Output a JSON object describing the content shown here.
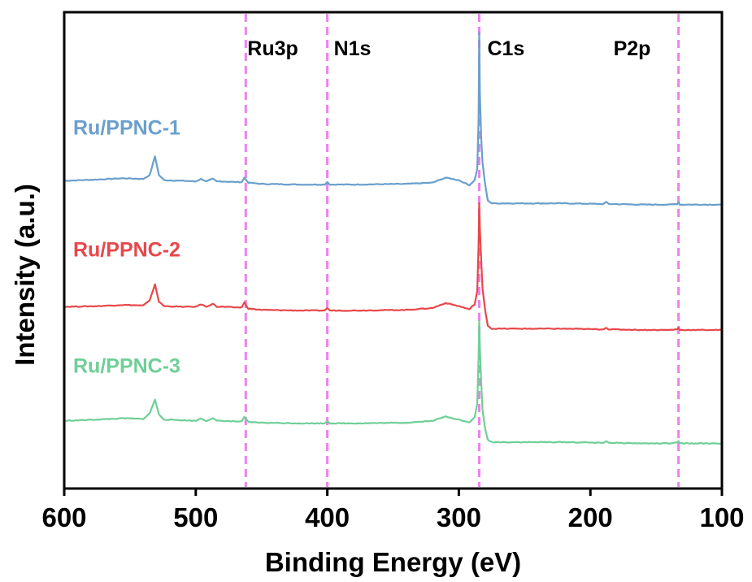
{
  "chart_data": {
    "type": "line",
    "xlabel": "Binding Energy (eV)",
    "ylabel": "Intensity (a.u.)",
    "xlim": [
      600,
      100
    ],
    "x_reversed": true,
    "x_ticks": [
      600,
      500,
      400,
      300,
      200,
      100
    ],
    "y_ticks_shown": false,
    "reference_lines": [
      {
        "label": "Ru3p",
        "x": 462,
        "color": "#ee82ee"
      },
      {
        "label": "N1s",
        "x": 400,
        "color": "#ee82ee"
      },
      {
        "label": "C1s",
        "x": 284.5,
        "color": "#ee82ee"
      },
      {
        "label": "P2p",
        "x": 133,
        "color": "#ee82ee"
      }
    ],
    "series": [
      {
        "name": "Ru/PPNC-1",
        "color": "#6a9fcc",
        "x": [
          600,
          575,
          555,
          540,
          535,
          531,
          528,
          524,
          510,
          500,
          496,
          492,
          487,
          484,
          480,
          470,
          465,
          463,
          460,
          450,
          420,
          402,
          400,
          398,
          380,
          340,
          320,
          310,
          300,
          292,
          288,
          286,
          285,
          284.5,
          284,
          283,
          282,
          280,
          278,
          275,
          270,
          250,
          220,
          190,
          188,
          186,
          160,
          140,
          134,
          133,
          132,
          120,
          100
        ],
        "y": [
          1.81,
          1.83,
          1.85,
          1.84,
          1.9,
          2.2,
          1.9,
          1.82,
          1.81,
          1.8,
          1.84,
          1.8,
          1.84,
          1.8,
          1.8,
          1.79,
          1.79,
          1.86,
          1.78,
          1.76,
          1.75,
          1.75,
          1.79,
          1.75,
          1.75,
          1.76,
          1.78,
          1.86,
          1.82,
          1.74,
          1.82,
          2.0,
          2.8,
          4.18,
          3.2,
          2.5,
          2.1,
          1.75,
          1.5,
          1.45,
          1.45,
          1.45,
          1.45,
          1.44,
          1.47,
          1.44,
          1.43,
          1.43,
          1.44,
          1.47,
          1.43,
          1.43,
          1.43
        ]
      },
      {
        "name": "Ru/PPNC-2",
        "color": "#e8474a",
        "x": [
          600,
          575,
          555,
          540,
          535,
          531,
          528,
          524,
          510,
          500,
          496,
          492,
          487,
          484,
          480,
          470,
          465,
          463,
          460,
          450,
          420,
          402,
          400,
          398,
          380,
          340,
          320,
          310,
          300,
          292,
          288,
          286,
          285,
          284.5,
          284,
          283,
          282,
          280,
          278,
          275,
          270,
          250,
          220,
          190,
          188,
          186,
          160,
          140,
          134,
          133,
          132,
          120,
          100
        ],
        "y": [
          -0.2,
          -0.19,
          -0.17,
          -0.18,
          -0.1,
          0.16,
          -0.12,
          -0.19,
          -0.2,
          -0.2,
          -0.16,
          -0.2,
          -0.15,
          -0.2,
          -0.2,
          -0.21,
          -0.21,
          -0.13,
          -0.23,
          -0.25,
          -0.26,
          -0.26,
          -0.22,
          -0.26,
          -0.26,
          -0.25,
          -0.22,
          -0.14,
          -0.19,
          -0.24,
          -0.16,
          0.05,
          0.8,
          1.45,
          1.05,
          0.55,
          0.1,
          -0.25,
          -0.5,
          -0.55,
          -0.55,
          -0.55,
          -0.55,
          -0.56,
          -0.53,
          -0.56,
          -0.57,
          -0.57,
          -0.56,
          -0.53,
          -0.57,
          -0.57,
          -0.57
        ]
      },
      {
        "name": "Ru/PPNC-3",
        "color": "#6fcf97",
        "x": [
          600,
          575,
          555,
          540,
          535,
          531,
          528,
          524,
          510,
          500,
          496,
          492,
          487,
          484,
          480,
          470,
          465,
          463,
          460,
          450,
          420,
          402,
          400,
          398,
          380,
          340,
          320,
          310,
          300,
          292,
          288,
          286,
          285,
          284.5,
          284,
          283,
          282,
          280,
          278,
          275,
          270,
          250,
          220,
          190,
          188,
          186,
          160,
          140,
          134,
          133,
          132,
          120,
          100
        ],
        "y": [
          -2.02,
          -2.0,
          -1.98,
          -1.99,
          -1.9,
          -1.68,
          -1.92,
          -2.0,
          -2.01,
          -2.02,
          -1.98,
          -2.02,
          -1.98,
          -2.02,
          -2.02,
          -2.03,
          -2.03,
          -1.96,
          -2.04,
          -2.05,
          -2.06,
          -2.06,
          -2.02,
          -2.06,
          -2.06,
          -2.05,
          -2.02,
          -1.95,
          -2.0,
          -2.05,
          -1.96,
          -1.75,
          -1.0,
          -0.42,
          -0.85,
          -1.4,
          -1.85,
          -2.15,
          -2.32,
          -2.36,
          -2.36,
          -2.36,
          -2.36,
          -2.37,
          -2.34,
          -2.37,
          -2.38,
          -2.38,
          -2.37,
          -2.34,
          -2.38,
          -2.38,
          -2.38
        ]
      }
    ],
    "series_label_positions": [
      "left-above-trace",
      "left-above-trace",
      "left-above-trace"
    ]
  }
}
